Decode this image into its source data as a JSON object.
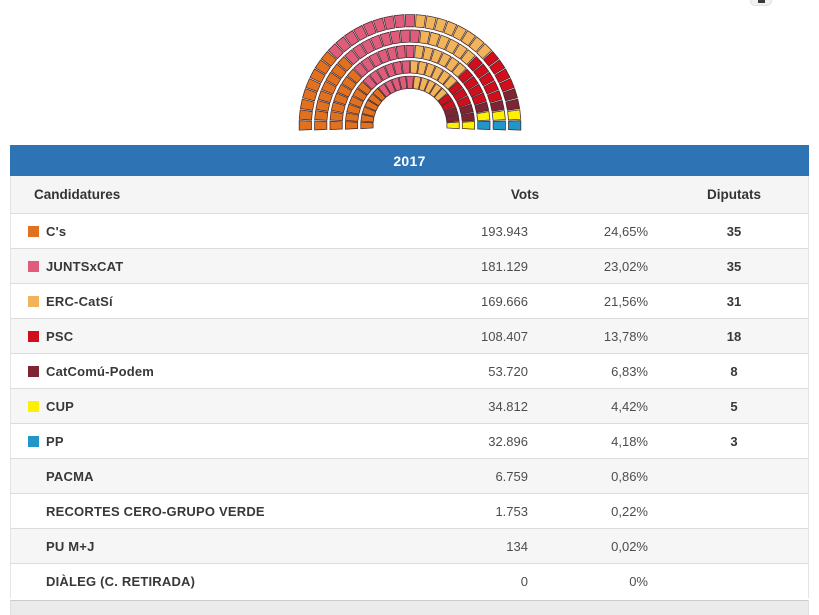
{
  "year_header": "2017",
  "accent_color": "#2e74b4",
  "table": {
    "headers": {
      "candidatures": "Candidatures",
      "vots": "Vots",
      "diputats": "Diputats"
    },
    "rows": [
      {
        "name": "C's",
        "color": "#e2711f",
        "votes": "193.943",
        "pct": "24,65%",
        "seats": "35"
      },
      {
        "name": "JUNTSxCAT",
        "color": "#e05c7b",
        "votes": "181.129",
        "pct": "23,02%",
        "seats": "35"
      },
      {
        "name": "ERC-CatSí",
        "color": "#f1b45a",
        "votes": "169.666",
        "pct": "21,56%",
        "seats": "31"
      },
      {
        "name": "PSC",
        "color": "#d30e1c",
        "votes": "108.407",
        "pct": "13,78%",
        "seats": "18"
      },
      {
        "name": "CatComú-Podem",
        "color": "#7e2433",
        "votes": "53.720",
        "pct": "6,83%",
        "seats": "8"
      },
      {
        "name": "CUP",
        "color": "#fdf002",
        "votes": "34.812",
        "pct": "4,42%",
        "seats": "5"
      },
      {
        "name": "PP",
        "color": "#2196c9",
        "votes": "32.896",
        "pct": "4,18%",
        "seats": "3"
      },
      {
        "name": "PACMA",
        "color": null,
        "votes": "6.759",
        "pct": "0,86%",
        "seats": ""
      },
      {
        "name": "RECORTES CERO-GRUPO VERDE",
        "color": null,
        "votes": "1.753",
        "pct": "0,22%",
        "seats": ""
      },
      {
        "name": "PU M+J",
        "color": null,
        "votes": "134",
        "pct": "0,02%",
        "seats": ""
      },
      {
        "name": "DIÀLEG (C. RETIRADA)",
        "color": null,
        "votes": "0",
        "pct": "0%",
        "seats": ""
      }
    ]
  },
  "chart_data": {
    "type": "parliament-hemicycle",
    "title": "2017",
    "total_seats": 135,
    "seat_rows": [
      21,
      24,
      27,
      30,
      33
    ],
    "seat_stroke": "#3c2329",
    "series": [
      {
        "name": "C's",
        "seats": 35,
        "color": "#e2711f",
        "votes": 193943,
        "pct": 24.65
      },
      {
        "name": "JUNTSxCAT",
        "seats": 35,
        "color": "#e05c7b",
        "votes": 181129,
        "pct": 23.02
      },
      {
        "name": "ERC-CatSí",
        "seats": 31,
        "color": "#f1b45a",
        "votes": 169666,
        "pct": 21.56
      },
      {
        "name": "PSC",
        "seats": 18,
        "color": "#d30e1c",
        "votes": 108407,
        "pct": 13.78
      },
      {
        "name": "CatComú-Podem",
        "seats": 8,
        "color": "#7e2433",
        "votes": 53720,
        "pct": 6.83
      },
      {
        "name": "CUP",
        "seats": 5,
        "color": "#fdf002",
        "votes": 34812,
        "pct": 4.42
      },
      {
        "name": "PP",
        "seats": 3,
        "color": "#2196c9",
        "votes": 32896,
        "pct": 4.18
      }
    ]
  }
}
